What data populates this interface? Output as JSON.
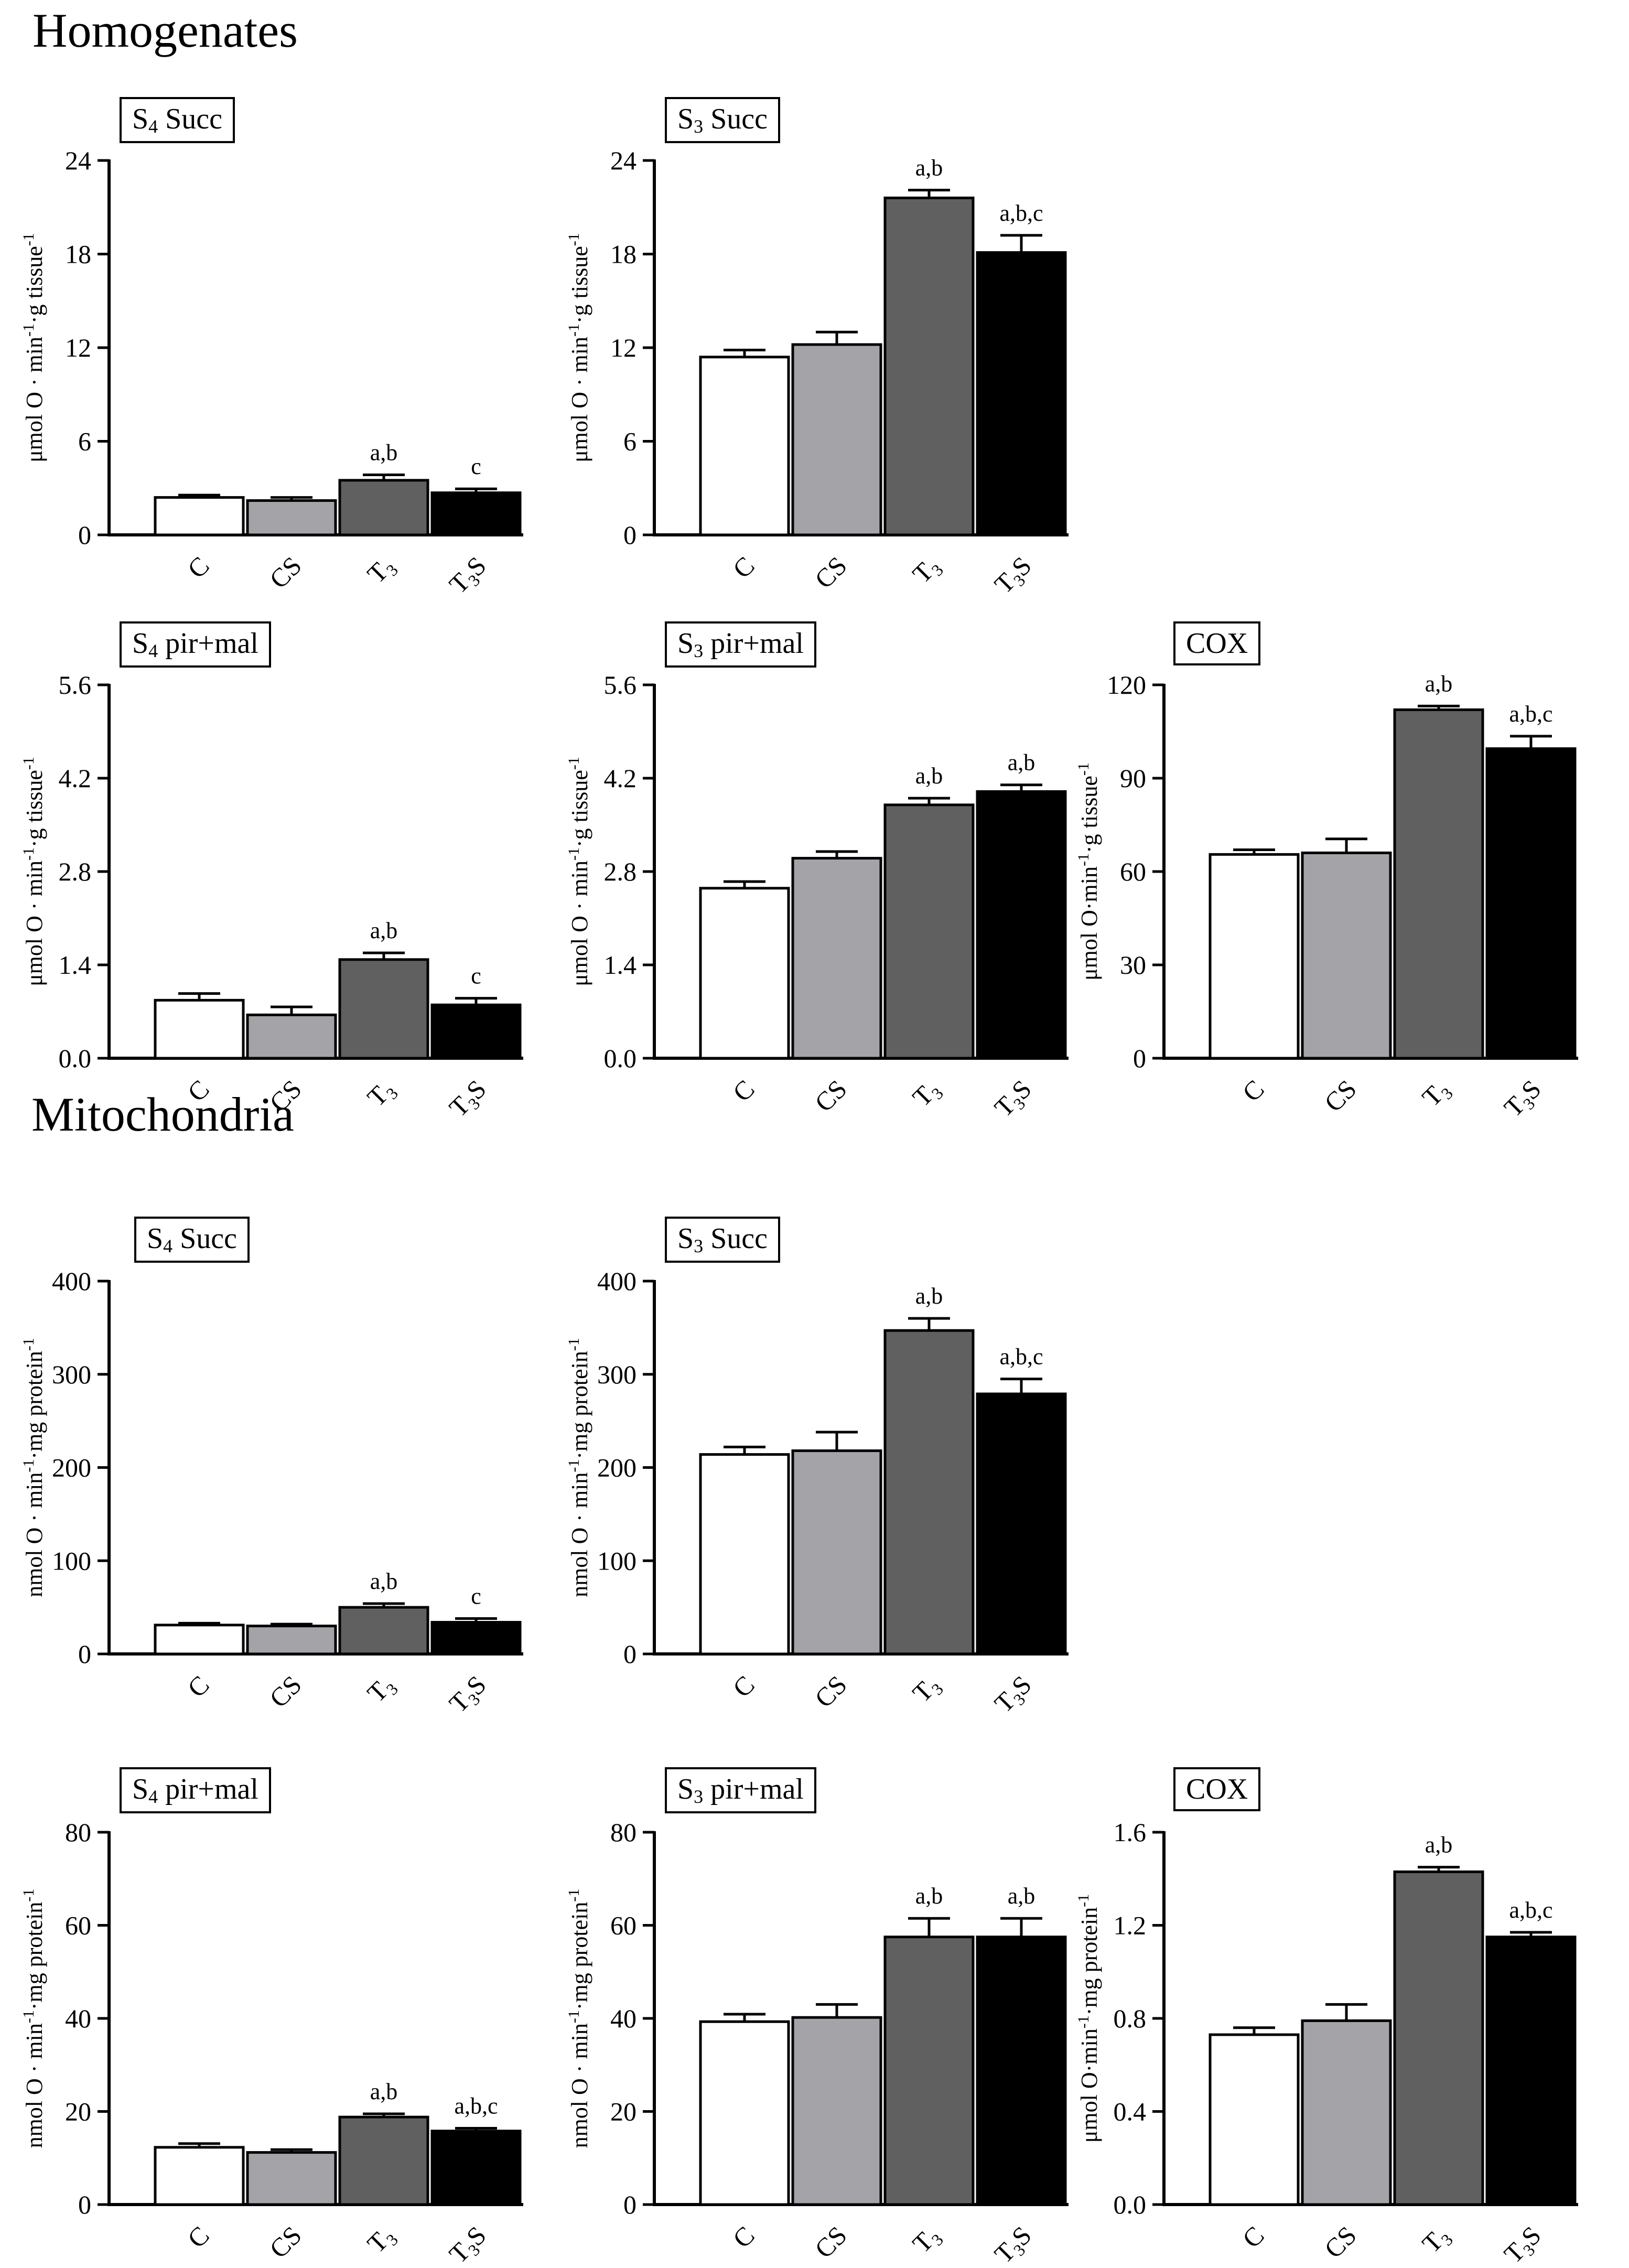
{
  "sections": [
    {
      "title": "Homogenates"
    },
    {
      "title": "Mitochondria"
    }
  ],
  "chart_data": [
    {
      "id": "hom-s4-succ",
      "type": "bar",
      "section": "Homogenates",
      "label_main": "S",
      "label_sub": "4",
      "label_rest": " Succ",
      "ylabel_parts": [
        "μmol O · min",
        "-1",
        "·g tissue",
        "-1"
      ],
      "ylim": [
        0,
        24
      ],
      "ticks": [
        "0",
        "6",
        "12",
        "18",
        "24"
      ],
      "categories": [
        "C",
        "CS",
        "T3",
        "T3S"
      ],
      "values": [
        2.4,
        2.2,
        3.5,
        2.7
      ],
      "errors": [
        0.15,
        0.2,
        0.35,
        0.25
      ],
      "annotations": [
        "",
        "",
        "a,b",
        "c"
      ]
    },
    {
      "id": "hom-s3-succ",
      "type": "bar",
      "section": "Homogenates",
      "label_main": "S",
      "label_sub": "3",
      "label_rest": " Succ",
      "ylabel_parts": [
        "μmol O · min",
        "-1",
        "·g tissue",
        "-1"
      ],
      "ylim": [
        0,
        24
      ],
      "ticks": [
        "0",
        "6",
        "12",
        "18",
        "24"
      ],
      "categories": [
        "C",
        "CS",
        "T3",
        "T3S"
      ],
      "values": [
        11.4,
        12.2,
        21.6,
        18.1
      ],
      "errors": [
        0.45,
        0.8,
        0.5,
        1.1
      ],
      "annotations": [
        "",
        "",
        "a,b",
        "a,b,c"
      ]
    },
    {
      "id": "hom-s4-pirmal",
      "type": "bar",
      "section": "Homogenates",
      "label_main": "S",
      "label_sub": "4",
      "label_rest": " pir+mal",
      "ylabel_parts": [
        "μmol O · min",
        "-1",
        "·g tissue",
        "-1"
      ],
      "ylim": [
        0,
        5.6
      ],
      "ticks": [
        "0.0",
        "1.4",
        "2.8",
        "4.2",
        "5.6"
      ],
      "categories": [
        "C",
        "CS",
        "T3",
        "T3S"
      ],
      "values": [
        0.87,
        0.65,
        1.48,
        0.8
      ],
      "errors": [
        0.1,
        0.12,
        0.1,
        0.1
      ],
      "annotations": [
        "",
        "",
        "a,b",
        "c"
      ]
    },
    {
      "id": "hom-s3-pirmal",
      "type": "bar",
      "section": "Homogenates",
      "label_main": "S",
      "label_sub": "3",
      "label_rest": " pir+mal",
      "ylabel_parts": [
        "μmol O · min",
        "-1",
        "·g tissue",
        "-1"
      ],
      "ylim": [
        0,
        5.6
      ],
      "ticks": [
        "0.0",
        "1.4",
        "2.8",
        "4.2",
        "5.6"
      ],
      "categories": [
        "C",
        "CS",
        "T3",
        "T3S"
      ],
      "values": [
        2.55,
        3.0,
        3.8,
        4.0
      ],
      "errors": [
        0.1,
        0.1,
        0.1,
        0.1
      ],
      "annotations": [
        "",
        "",
        "a,b",
        "a,b"
      ]
    },
    {
      "id": "hom-cox",
      "type": "bar",
      "section": "Homogenates",
      "label_main": "COX",
      "label_sub": "",
      "label_rest": "",
      "ylabel_parts": [
        "μmol O·min",
        "-1",
        "·g tissue",
        "-1"
      ],
      "ylim": [
        0,
        120
      ],
      "ticks": [
        "0",
        "30",
        "60",
        "90",
        "120"
      ],
      "categories": [
        "C",
        "CS",
        "T3",
        "T3S"
      ],
      "values": [
        65.5,
        66,
        112,
        99.5
      ],
      "errors": [
        1.5,
        4.5,
        1.2,
        4
      ],
      "annotations": [
        "",
        "",
        "a,b",
        "a,b,c"
      ]
    },
    {
      "id": "mit-s4-succ",
      "type": "bar",
      "section": "Mitochondria",
      "label_main": "S",
      "label_sub": "4",
      "label_rest": " Succ",
      "ylabel_parts": [
        "nmol O · min",
        "-1",
        "·mg protein",
        "-1"
      ],
      "ylim": [
        0,
        400
      ],
      "ticks": [
        "0",
        "100",
        "200",
        "300",
        "400"
      ],
      "categories": [
        "C",
        "CS",
        "T3",
        "T3S"
      ],
      "values": [
        31,
        30,
        50,
        34
      ],
      "errors": [
        2,
        2,
        4,
        4
      ],
      "annotations": [
        "",
        "",
        "a,b",
        "c"
      ]
    },
    {
      "id": "mit-s3-succ",
      "type": "bar",
      "section": "Mitochondria",
      "label_main": "S",
      "label_sub": "3",
      "label_rest": " Succ",
      "ylabel_parts": [
        "nmol O · min",
        "-1",
        "·mg protein",
        "-1"
      ],
      "ylim": [
        0,
        400
      ],
      "ticks": [
        "0",
        "100",
        "200",
        "300",
        "400"
      ],
      "categories": [
        "C",
        "CS",
        "T3",
        "T3S"
      ],
      "values": [
        214,
        218,
        347,
        279
      ],
      "errors": [
        8,
        20,
        13,
        16
      ],
      "annotations": [
        "",
        "",
        "a,b",
        "a,b,c"
      ]
    },
    {
      "id": "mit-s4-pirmal",
      "type": "bar",
      "section": "Mitochondria",
      "label_main": "S",
      "label_sub": "4",
      "label_rest": " pir+mal",
      "ylabel_parts": [
        "nmol O · min",
        "-1",
        "·mg protein",
        "-1"
      ],
      "ylim": [
        0,
        80
      ],
      "ticks": [
        "0",
        "20",
        "40",
        "60",
        "80"
      ],
      "categories": [
        "C",
        "CS",
        "T3",
        "T3S"
      ],
      "values": [
        12.3,
        11.2,
        18.8,
        15.8
      ],
      "errors": [
        0.8,
        0.6,
        0.7,
        0.6
      ],
      "annotations": [
        "",
        "",
        "a,b",
        "a,b,c"
      ]
    },
    {
      "id": "mit-s3-pirmal",
      "type": "bar",
      "section": "Mitochondria",
      "label_main": "S",
      "label_sub": "3",
      "label_rest": " pir+mal",
      "ylabel_parts": [
        "nmol O · min",
        "-1",
        "·mg protein",
        "-1"
      ],
      "ylim": [
        0,
        80
      ],
      "ticks": [
        "0",
        "20",
        "40",
        "60",
        "80"
      ],
      "categories": [
        "C",
        "CS",
        "T3",
        "T3S"
      ],
      "values": [
        39.3,
        40.2,
        57.5,
        57.5
      ],
      "errors": [
        1.6,
        2.8,
        4,
        4
      ],
      "annotations": [
        "",
        "",
        "a,b",
        "a,b"
      ]
    },
    {
      "id": "mit-cox",
      "type": "bar",
      "section": "Mitochondria",
      "label_main": "COX",
      "label_sub": "",
      "label_rest": "",
      "ylabel_parts": [
        "μmol O·min",
        "-1",
        "·mg protein",
        "-1"
      ],
      "ylim": [
        0,
        1.6
      ],
      "ticks": [
        "0.0",
        "0.4",
        "0.8",
        "1.2",
        "1.6"
      ],
      "categories": [
        "C",
        "CS",
        "T3",
        "T3S"
      ],
      "values": [
        0.73,
        0.79,
        1.43,
        1.15
      ],
      "errors": [
        0.03,
        0.07,
        0.02,
        0.02
      ],
      "annotations": [
        "",
        "",
        "a,b",
        "a,b,c"
      ]
    }
  ],
  "bar_colors": [
    "#ffffff",
    "#a4a3a8",
    "#606060",
    "#000000"
  ]
}
